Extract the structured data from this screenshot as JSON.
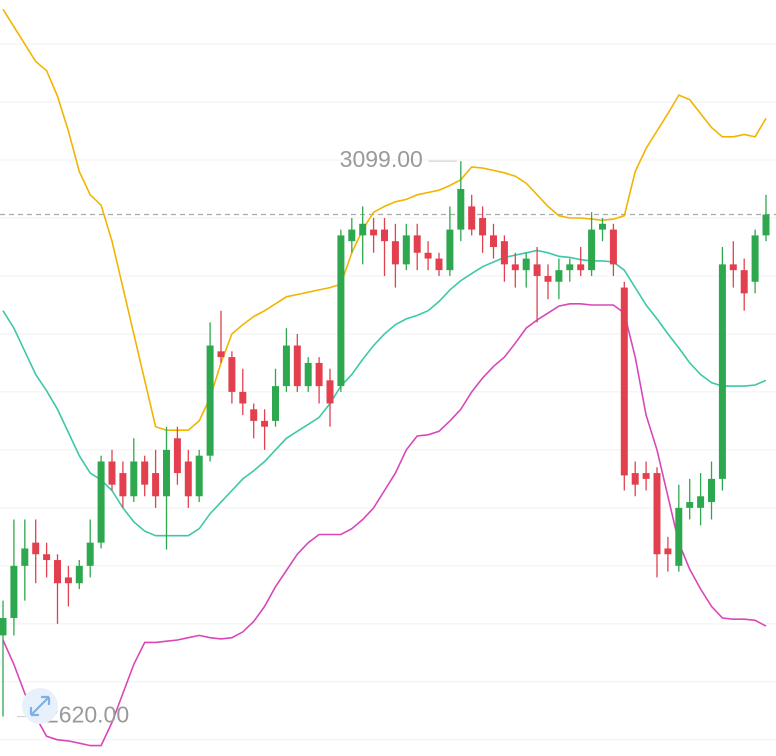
{
  "chart_data": {
    "type": "candlestick",
    "ylim": [
      2586,
      3238
    ],
    "yticks": [
      2600,
      2650,
      2700,
      2750,
      2800,
      2850,
      2900,
      2950,
      3000,
      3050,
      3100,
      3150,
      3200
    ],
    "grid": true,
    "up_color": "#2ea84f",
    "down_color": "#e2404f",
    "price_line": 3053,
    "annotations": [
      {
        "label": "3099.00",
        "value": 3099
      },
      {
        "label": "2620.00",
        "value": 2620
      }
    ],
    "candles": {
      "open": [
        2690,
        2705,
        2750,
        2770,
        2760,
        2755,
        2740,
        2735,
        2750,
        2770,
        2840,
        2830,
        2810,
        2840,
        2830,
        2810,
        2860,
        2840,
        2810,
        2845,
        2935,
        2930,
        2900,
        2885,
        2875,
        2875,
        2905,
        2940,
        2905,
        2925,
        2910,
        2905,
        3030,
        3035,
        3040,
        3040,
        3030,
        3010,
        3035,
        3020,
        3015,
        3005,
        3040,
        3060,
        3050,
        3035,
        3030,
        3010,
        3005,
        3010,
        3000,
        2995,
        3005,
        3010,
        3005,
        3040,
        3040,
        2990,
        2830,
        2830,
        2830,
        2765,
        2750,
        2800,
        2800,
        2805,
        2825,
        3010,
        3005,
        2995,
        3035
      ],
      "high": [
        2720,
        2790,
        2790,
        2790,
        2770,
        2760,
        2750,
        2755,
        2790,
        2845,
        2850,
        2840,
        2860,
        2845,
        2850,
        2870,
        2870,
        2850,
        2850,
        2960,
        2970,
        2935,
        2920,
        2890,
        2885,
        2920,
        2955,
        2950,
        2930,
        2930,
        2920,
        3040,
        3050,
        3060,
        3050,
        3050,
        3045,
        3045,
        3045,
        3030,
        3020,
        3060,
        3099,
        3070,
        3060,
        3045,
        3035,
        3020,
        3020,
        3025,
        3010,
        3015,
        3015,
        3025,
        3055,
        3050,
        3045,
        2995,
        2840,
        2840,
        2835,
        2775,
        2820,
        2825,
        2830,
        2840,
        3025,
        3030,
        3015,
        3040,
        3070
      ],
      "low": [
        2620,
        2690,
        2720,
        2735,
        2740,
        2700,
        2715,
        2730,
        2740,
        2765,
        2815,
        2800,
        2805,
        2810,
        2800,
        2764,
        2820,
        2800,
        2805,
        2840,
        2925,
        2890,
        2880,
        2860,
        2850,
        2870,
        2900,
        2900,
        2900,
        2890,
        2870,
        2900,
        3020,
        3010,
        3020,
        3000,
        2990,
        3005,
        3005,
        3005,
        3000,
        3000,
        3030,
        3035,
        3020,
        3015,
        2995,
        2990,
        2990,
        2960,
        2980,
        2980,
        2995,
        3000,
        3000,
        3030,
        3000,
        2815,
        2810,
        2815,
        2740,
        2745,
        2745,
        2790,
        2785,
        2790,
        2815,
        2990,
        2970,
        2985,
        3030
      ],
      "close": [
        2705,
        2750,
        2765,
        2760,
        2755,
        2735,
        2735,
        2750,
        2770,
        2840,
        2820,
        2810,
        2840,
        2820,
        2810,
        2850,
        2830,
        2810,
        2845,
        2940,
        2930,
        2900,
        2890,
        2875,
        2870,
        2905,
        2940,
        2905,
        2925,
        2905,
        2890,
        3035,
        3040,
        3045,
        3035,
        3030,
        3010,
        3035,
        3020,
        3015,
        3005,
        3040,
        3075,
        3040,
        3035,
        3025,
        3010,
        3005,
        3015,
        3000,
        2995,
        3005,
        3010,
        3005,
        3040,
        3045,
        3010,
        2828,
        2820,
        2825,
        2760,
        2760,
        2800,
        2805,
        2810,
        2825,
        3010,
        3005,
        2985,
        3035,
        3053
      ]
    },
    "bands": [
      {
        "color": "#f2b400",
        "values": [
          3230,
          3215,
          3200,
          3185,
          3177,
          3155,
          3125,
          3090,
          3070,
          3061,
          3030,
          2990,
          2950,
          2910,
          2870,
          2867,
          2867,
          2867,
          2875,
          2895,
          2925,
          2950,
          2958,
          2965,
          2970,
          2976,
          2982,
          2984,
          2986,
          2988,
          2990,
          2993,
          3020,
          3040,
          3055,
          3060,
          3064,
          3066,
          3070,
          3072,
          3074,
          3078,
          3083,
          3094,
          3093,
          3091,
          3089,
          3086,
          3080,
          3070,
          3060,
          3052,
          3050,
          3050,
          3049,
          3048,
          3049,
          3052,
          3090,
          3110,
          3125,
          3140,
          3156,
          3152,
          3140,
          3128,
          3120,
          3120,
          3122,
          3120,
          3136
        ]
      },
      {
        "color": "#3cc8a8",
        "values": [
          2970,
          2955,
          2935,
          2915,
          2901,
          2885,
          2865,
          2845,
          2830,
          2824,
          2815,
          2800,
          2788,
          2780,
          2776,
          2776,
          2776,
          2776,
          2782,
          2795,
          2805,
          2815,
          2825,
          2832,
          2840,
          2850,
          2860,
          2866,
          2872,
          2878,
          2890,
          2905,
          2915,
          2928,
          2940,
          2950,
          2958,
          2963,
          2966,
          2970,
          2978,
          2988,
          2996,
          3002,
          3008,
          3012,
          3016,
          3018,
          3020,
          3022,
          3020,
          3017,
          3016,
          3014,
          3013,
          3013,
          3012,
          3005,
          2990,
          2975,
          2963,
          2950,
          2938,
          2925,
          2915,
          2908,
          2905,
          2905,
          2905,
          2906,
          2910
        ]
      },
      {
        "color": "#d946b8",
        "values": [
          2686,
          2665,
          2640,
          2620,
          2603,
          2600,
          2599,
          2597,
          2595,
          2595,
          2615,
          2640,
          2665,
          2684,
          2684,
          2685,
          2686,
          2688,
          2690,
          2688,
          2687,
          2688,
          2693,
          2702,
          2715,
          2732,
          2746,
          2760,
          2770,
          2777,
          2777,
          2777,
          2782,
          2790,
          2800,
          2815,
          2830,
          2850,
          2862,
          2863,
          2866,
          2875,
          2885,
          2900,
          2912,
          2922,
          2930,
          2942,
          2955,
          2962,
          2968,
          2974,
          2976,
          2976,
          2975,
          2975,
          2975,
          2968,
          2930,
          2880,
          2850,
          2810,
          2770,
          2747,
          2730,
          2715,
          2705,
          2704,
          2704,
          2703,
          2698
        ]
      }
    ]
  }
}
